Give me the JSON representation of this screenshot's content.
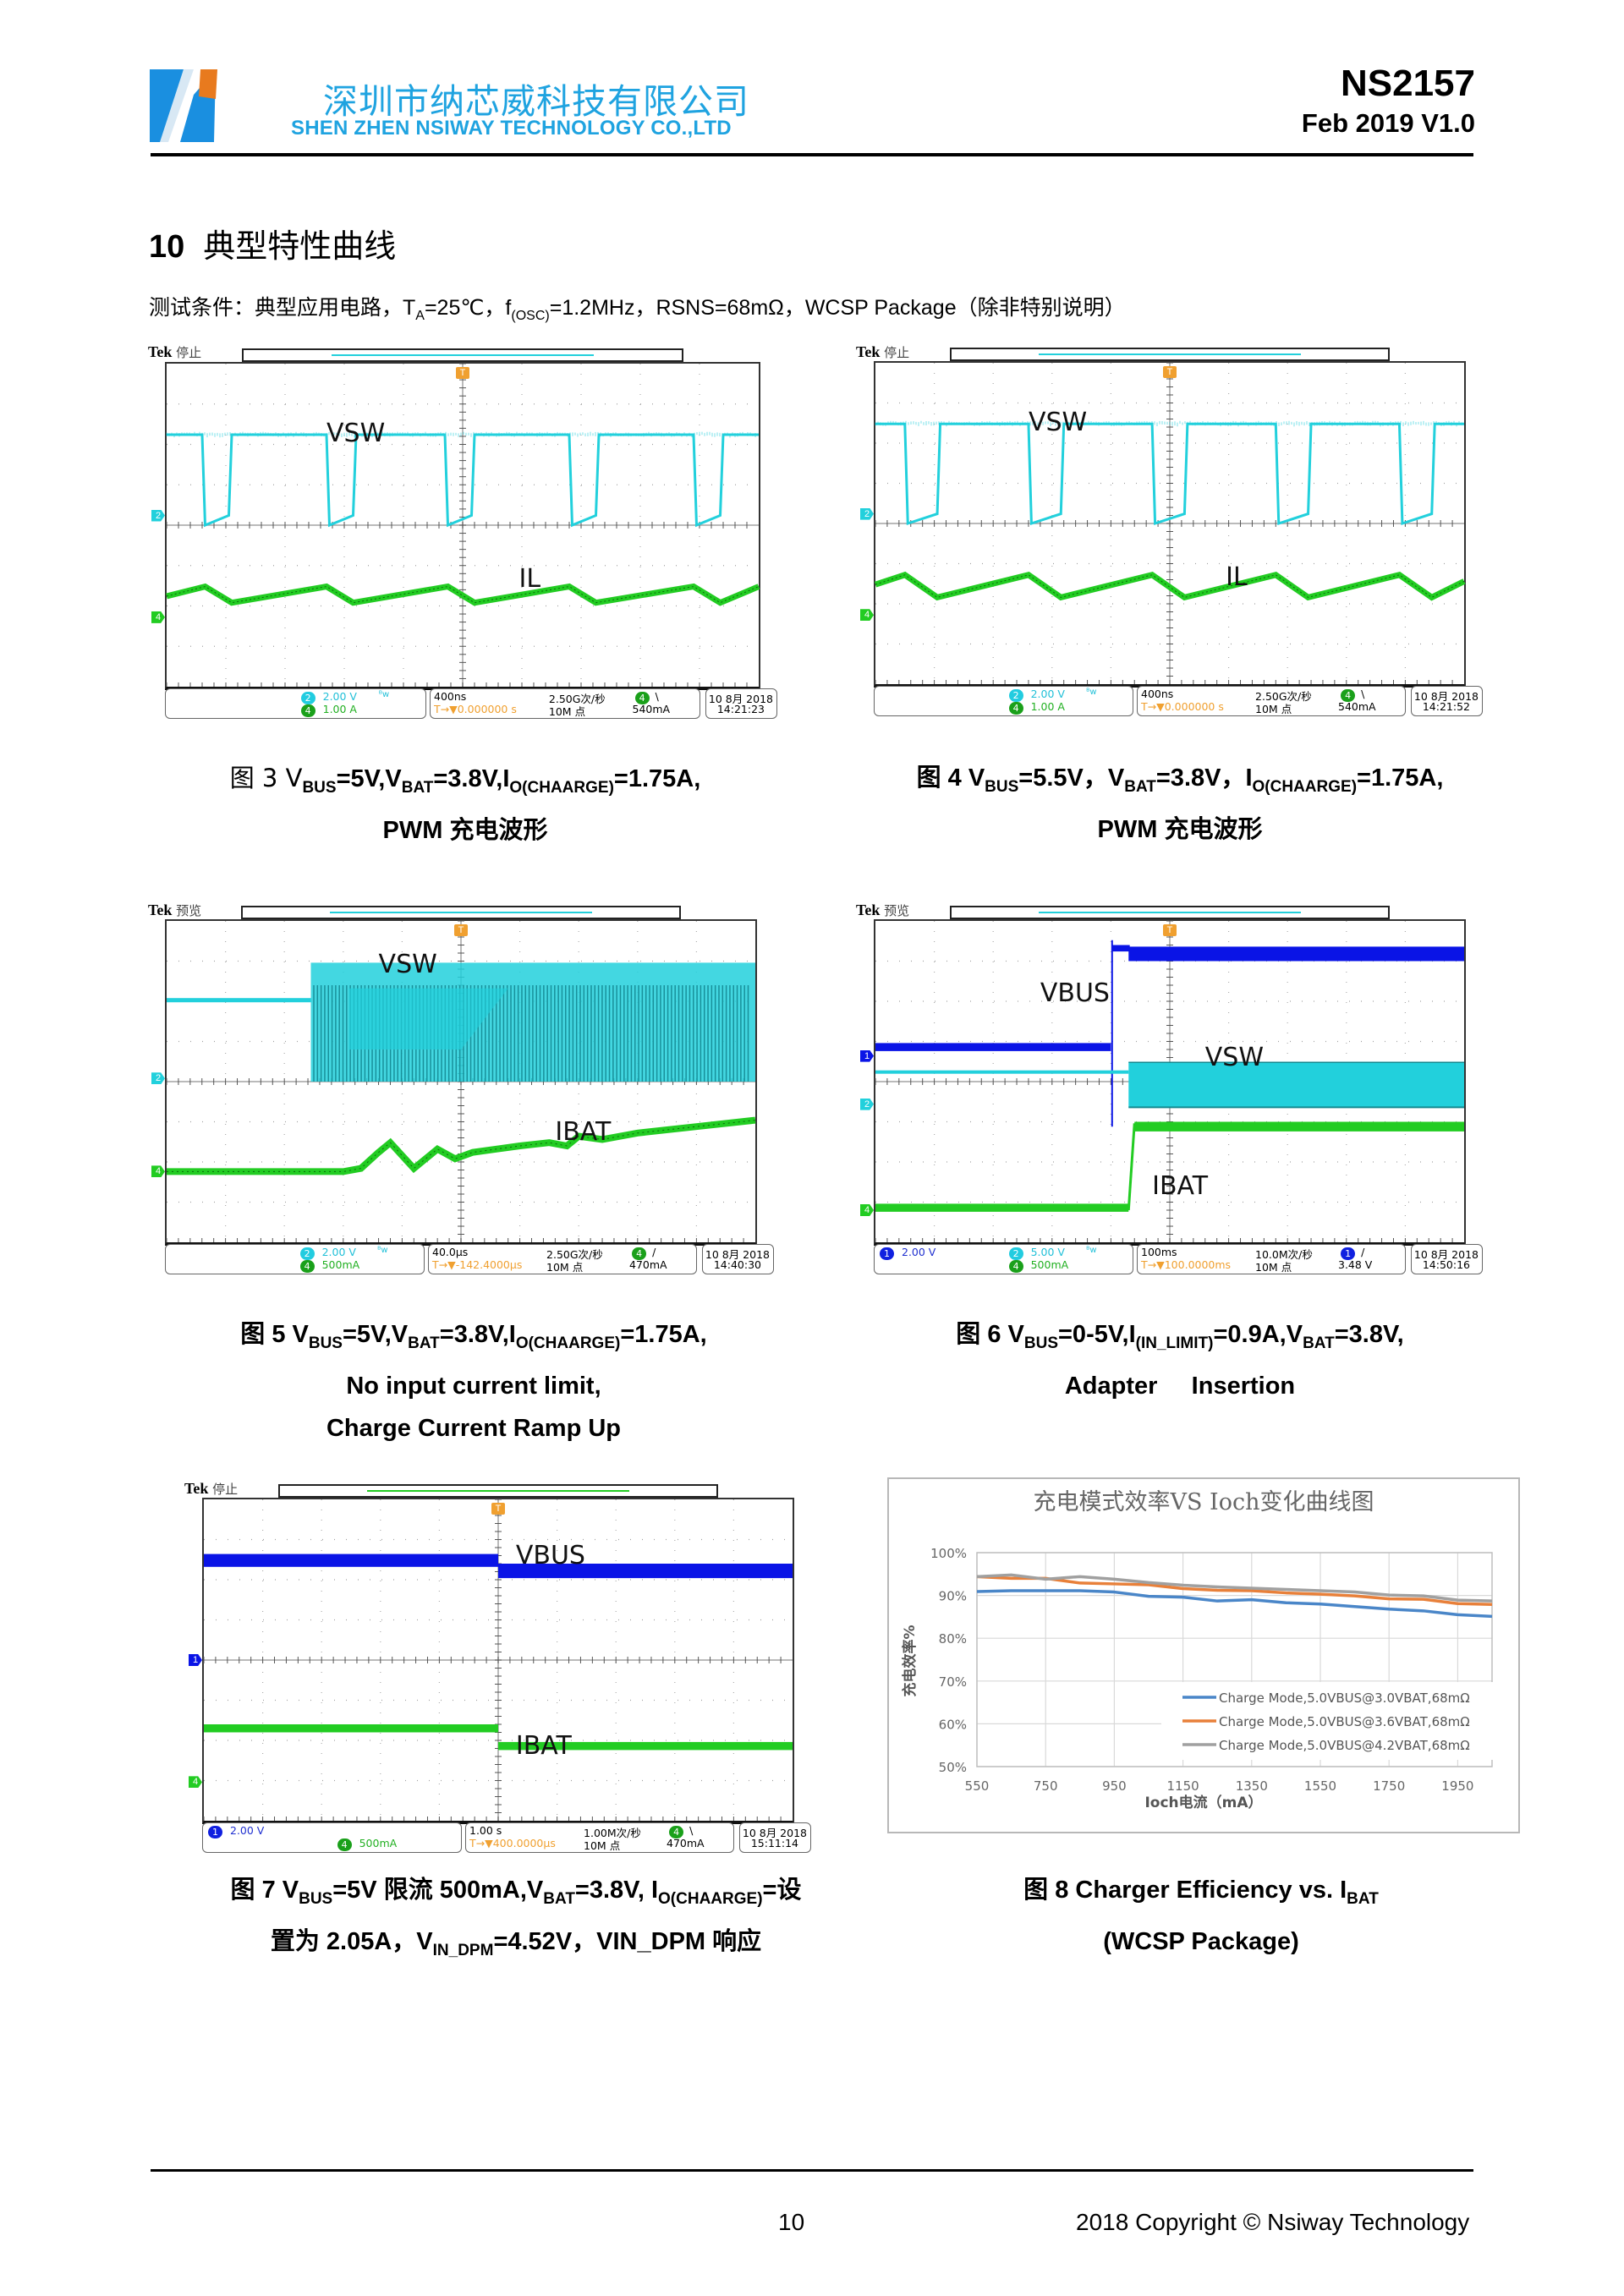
{
  "header": {
    "company_cn": "深圳市纳芯威科技有限公司",
    "company_en": "SHEN ZHEN NSIWAY  TECHNOLOGY CO.,LTD",
    "part_number": "NS2157",
    "version": "Feb 2019 V1.0",
    "brand_colors": {
      "blue": "#1fa3e0",
      "orange": "#e87a1e"
    }
  },
  "section": {
    "number": "10",
    "title": "典型特性曲线",
    "conditions": {
      "prefix": "测试条件：典型应用电路，T",
      "ta_sub": "A",
      "ta_val": "=25℃，f",
      "osc_sub": "(OSC)",
      "rest": "=1.2MHz，RSNS=68mΩ，WCSP Package（除非特别说明）"
    }
  },
  "colors": {
    "ch1": "#0a14e6",
    "ch2": "#22d0dc",
    "ch4": "#22cc22",
    "trigger": "#f0a030"
  },
  "scopes": [
    {
      "id": "fig3",
      "status": "停止",
      "brand": "Tek",
      "labels": [
        "VSW",
        "IL"
      ],
      "info": {
        "ch1": "",
        "ch2": "2.00 V",
        "ch4": "1.00 A",
        "bw": "ᴮw",
        "timebase": "400ns",
        "trig_pos": "0.000000 s",
        "sample_rate": "2.50G次/秒",
        "record": "10M 点",
        "trig_ch": "4",
        "trig_slope": "\\",
        "trig_level": "540mA",
        "date": "10 8月 2018",
        "time": "14:21:23"
      }
    },
    {
      "id": "fig4",
      "status": "停止",
      "brand": "Tek",
      "labels": [
        "VSW",
        "IL"
      ],
      "info": {
        "ch1": "",
        "ch2": "2.00 V",
        "ch4": "1.00 A",
        "bw": "ᴮw",
        "timebase": "400ns",
        "trig_pos": "0.000000 s",
        "sample_rate": "2.50G次/秒",
        "record": "10M 点",
        "trig_ch": "4",
        "trig_slope": "\\",
        "trig_level": "540mA",
        "date": "10 8月 2018",
        "time": "14:21:52"
      }
    },
    {
      "id": "fig5",
      "status": "预览",
      "brand": "Tek",
      "labels": [
        "VSW",
        "IBAT"
      ],
      "info": {
        "ch1": "",
        "ch2": "2.00 V",
        "ch4": "500mA",
        "bw": "ᴮw",
        "timebase": "40.0μs",
        "trig_pos": "-142.4000μs",
        "sample_rate": "2.50G次/秒",
        "record": "10M 点",
        "trig_ch": "4",
        "trig_slope": "/",
        "trig_level": "470mA",
        "date": "10 8月 2018",
        "time": "14:40:30"
      }
    },
    {
      "id": "fig6",
      "status": "预览",
      "brand": "Tek",
      "labels": [
        "VBUS",
        "VSW",
        "IBAT"
      ],
      "info": {
        "ch1": "2.00 V",
        "ch2": "5.00 V",
        "ch4": "500mA",
        "bw": "ᴮw",
        "timebase": "100ms",
        "trig_pos": "100.0000ms",
        "sample_rate": "10.0M次/秒",
        "record": "10M 点",
        "trig_ch": "1",
        "trig_slope": "/",
        "trig_level": "3.48 V",
        "date": "10 8月 2018",
        "time": "14:50:16"
      }
    },
    {
      "id": "fig7",
      "status": "停止",
      "brand": "Tek",
      "labels": [
        "VBUS",
        "IBAT"
      ],
      "info": {
        "ch1": "2.00 V",
        "ch2": "",
        "ch4": "500mA",
        "bw": "",
        "timebase": "1.00 s",
        "trig_pos": "400.0000μs",
        "sample_rate": "1.00M次/秒",
        "record": "10M 点",
        "trig_ch": "4",
        "trig_slope": "\\",
        "trig_level": "470mA",
        "date": "10 8月 2018",
        "time": "15:11:14"
      }
    }
  ],
  "captions": {
    "fig3": {
      "l1": [
        "图 3 V",
        "BUS",
        "=5V,V",
        "BAT",
        "=3.8V,I",
        "O(CHAARGE)",
        "=1.75A,"
      ],
      "l2": "PWM 充电波形"
    },
    "fig4": {
      "l1": [
        "图 4 V",
        "BUS",
        "=5.5V，V",
        "BAT",
        "=3.8V，I",
        "O(CHAARGE)",
        "=1.75A,"
      ],
      "l2": "PWM 充电波形"
    },
    "fig5": {
      "l1": [
        "图 5 V",
        "BUS",
        "=5V,V",
        "BAT",
        "=3.8V,I",
        "O(CHAARGE)",
        "=1.75A,"
      ],
      "l2": "No input current limit,",
      "l3": "Charge Current Ramp Up"
    },
    "fig6": {
      "l1": [
        "图 6 V",
        "BUS",
        "=0-5V,I",
        "(IN_LIMIT)",
        "=0.9A,V",
        "BAT",
        "=3.8V,"
      ],
      "l2": "Adapter     Insertion"
    },
    "fig7": {
      "l1": [
        "图 7 V",
        "BUS",
        "=5V 限流 500mA,V",
        "BAT",
        "=3.8V, I",
        "O(CHAARGE)",
        "=设"
      ],
      "l2": [
        "置为 2.05A，V",
        "IN_DPM",
        "=4.52V，VIN_DPM 响应"
      ]
    },
    "fig8": {
      "l1": [
        "图 8 Charger Efficiency vs. I",
        "BAT",
        ""
      ],
      "l2": "(WCSP Package)"
    }
  },
  "chart_data": {
    "type": "line",
    "title": "充电模式效率VS Ioch变化曲线图",
    "xlabel": "Ioch电流（mA）",
    "ylabel": "充电效率%",
    "x": [
      550,
      650,
      750,
      850,
      950,
      1050,
      1150,
      1250,
      1350,
      1450,
      1550,
      1650,
      1750,
      1850,
      1950,
      2050
    ],
    "xticks": [
      550,
      750,
      950,
      1150,
      1350,
      1550,
      1750,
      1950
    ],
    "xlim": [
      550,
      2050
    ],
    "yticks": [
      "50%",
      "60%",
      "70%",
      "80%",
      "90%",
      "100%"
    ],
    "ylim": [
      50,
      100
    ],
    "grid": true,
    "legend": "bottom-right",
    "series": [
      {
        "name": "Charge Mode,5.0VBUS@3.0VBAT,68mΩ",
        "color": "#4a86c8",
        "values": [
          90.9,
          91.1,
          91.1,
          91.1,
          90.8,
          89.8,
          89.6,
          88.7,
          89.0,
          88.3,
          88.0,
          87.4,
          86.8,
          86.4,
          85.5,
          85.1
        ]
      },
      {
        "name": "Charge Mode,5.0VBUS@3.6VBAT,68mΩ",
        "color": "#e8803a",
        "values": [
          94.4,
          94.0,
          94.0,
          92.9,
          92.7,
          92.5,
          91.6,
          91.2,
          91.1,
          90.6,
          90.3,
          89.9,
          89.2,
          89.1,
          88.1,
          87.9
        ]
      },
      {
        "name": "Charge Mode,5.0VBUS@4.2VBAT,68mΩ",
        "color": "#a0a0a0",
        "values": [
          94.4,
          94.8,
          93.8,
          94.4,
          93.8,
          93.0,
          92.4,
          92.0,
          91.7,
          91.4,
          91.1,
          90.8,
          90.1,
          89.9,
          88.9,
          88.7
        ]
      }
    ]
  },
  "footer": {
    "page": "10",
    "copyright": "2018 Copyright © Nsiway Technology"
  }
}
